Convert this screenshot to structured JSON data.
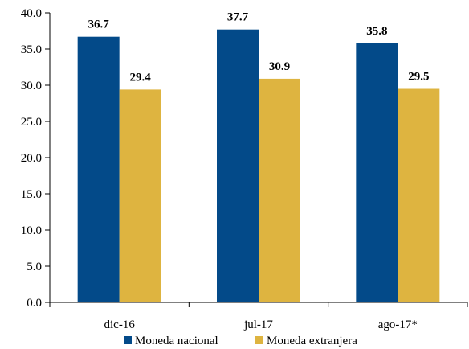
{
  "chart_data": {
    "type": "bar",
    "categories": [
      "dic-16",
      "jul-17",
      "ago-17*"
    ],
    "series": [
      {
        "name": "Moneda nacional",
        "color": "#034A89",
        "values": [
          36.7,
          37.7,
          35.8
        ],
        "labels": [
          "36.7",
          "37.7",
          "35.8"
        ]
      },
      {
        "name": "Moneda extranjera",
        "color": "#DEB440",
        "values": [
          29.4,
          30.9,
          29.5
        ],
        "labels": [
          "29.4",
          "30.9",
          "29.5"
        ]
      }
    ],
    "y_ticks": [
      "0.0",
      "5.0",
      "10.0",
      "15.0",
      "20.0",
      "25.0",
      "30.0",
      "35.0",
      "40.0"
    ],
    "ylim": [
      0,
      40
    ],
    "grid": false,
    "legend_position": "bottom"
  }
}
